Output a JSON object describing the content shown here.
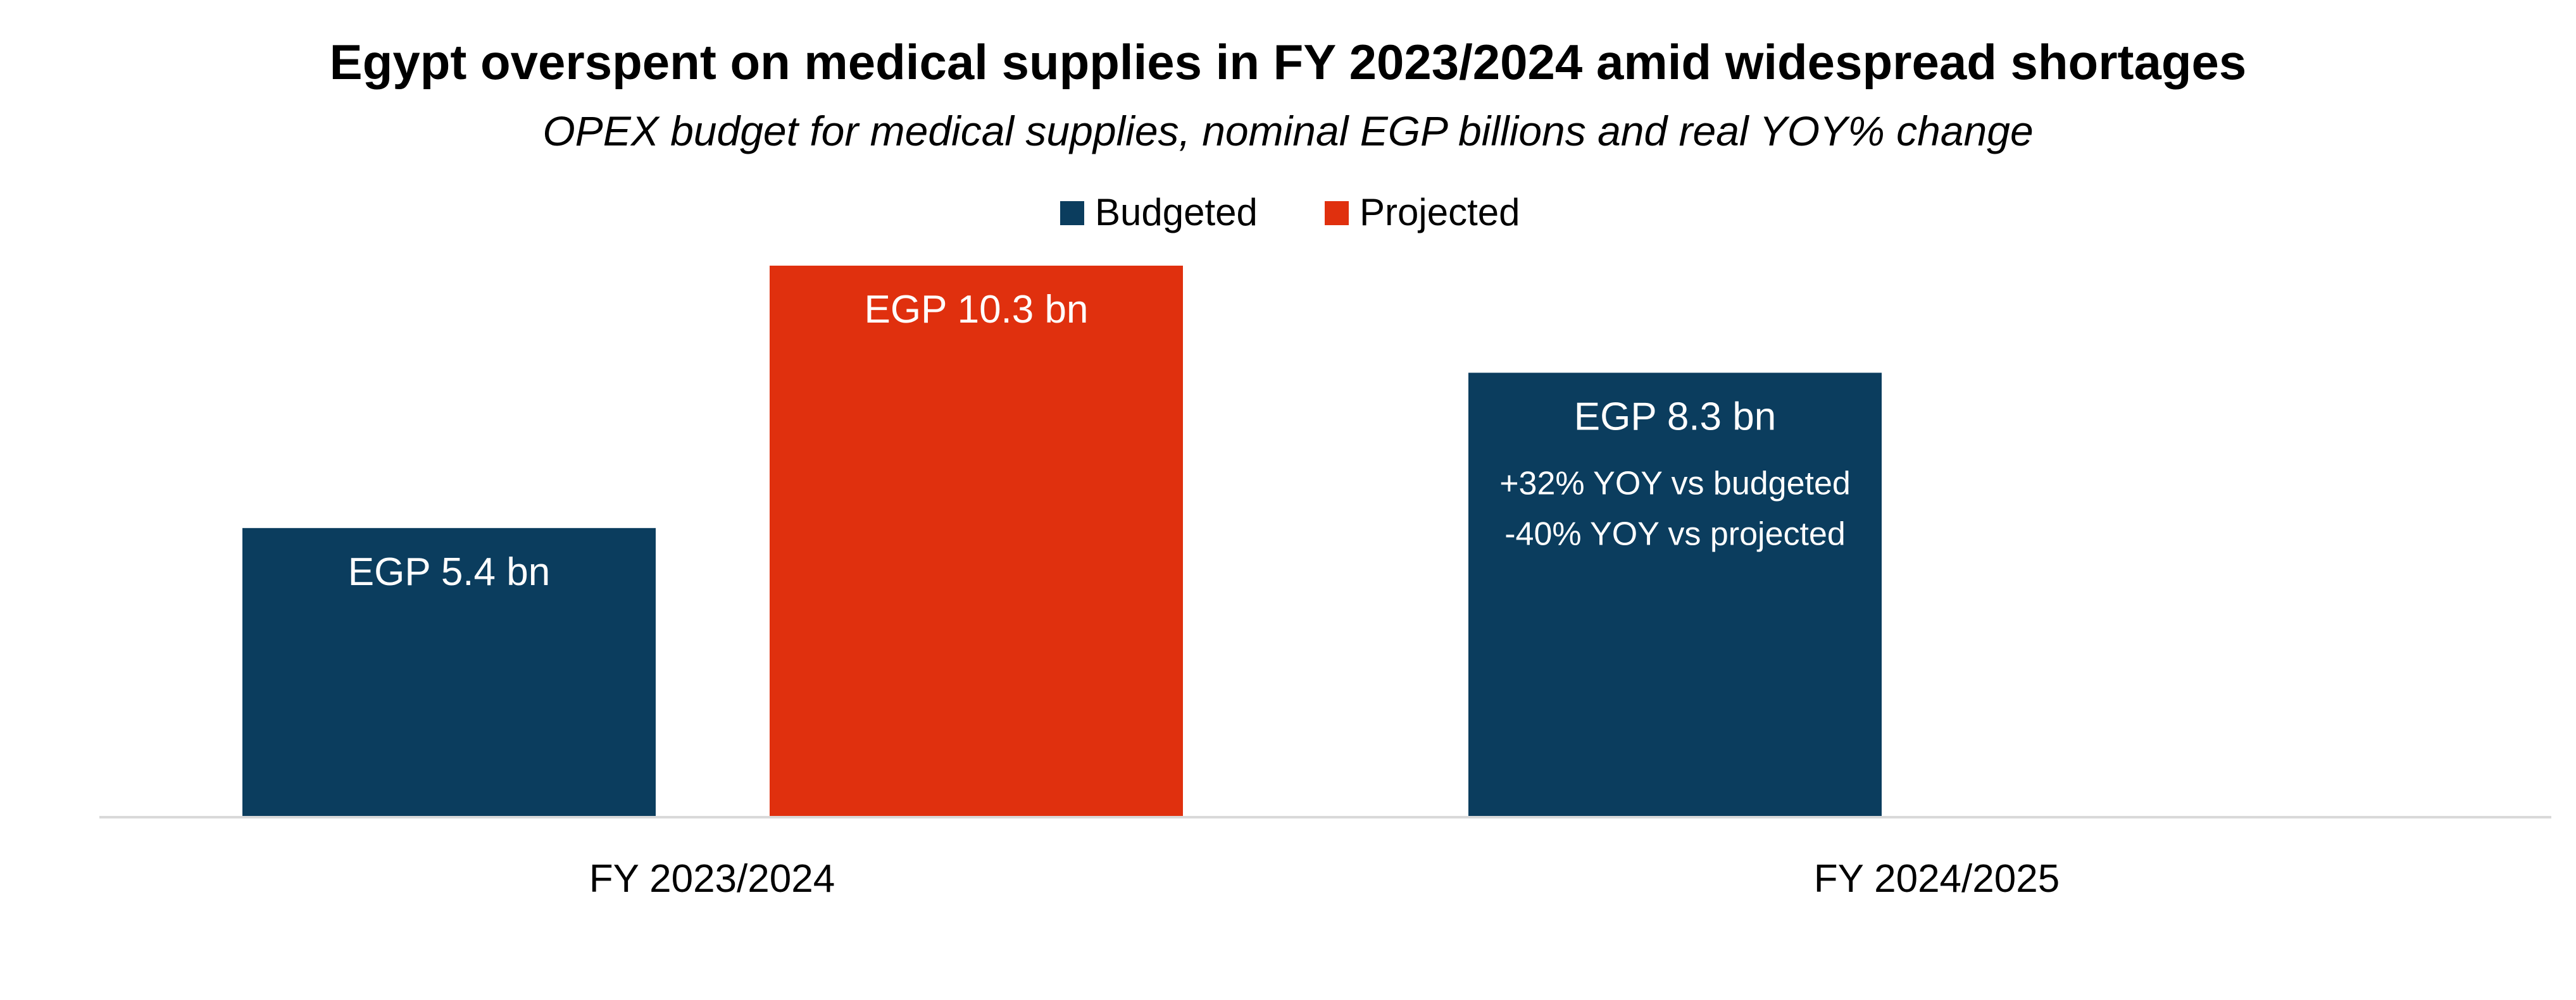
{
  "chart_data": {
    "type": "bar",
    "title": "Egypt overspent on medical supplies in FY 2023/2024 amid widespread shortages",
    "subtitle": "OPEX budget for medical supplies, nominal EGP billions and real YOY% change",
    "categories": [
      "FY 2023/2024",
      "FY 2024/2025"
    ],
    "legend": {
      "position": "top",
      "entries": [
        "Budgeted",
        "Projected"
      ]
    },
    "series": [
      {
        "name": "Budgeted",
        "color": "#0b3d5e",
        "values": [
          5.4,
          8.3
        ],
        "labels": [
          [
            "EGP 5.4 bn"
          ],
          [
            "EGP 8.3 bn",
            "+32% YOY vs budgeted",
            "-40% YOY vs projected"
          ]
        ]
      },
      {
        "name": "Projected",
        "color": "#e0300e",
        "values": [
          10.3,
          null
        ],
        "labels": [
          [
            "EGP 10.3 bn"
          ],
          null
        ]
      }
    ],
    "ylim": [
      0,
      10.3
    ],
    "grid": false,
    "axis_color": "#d9d9d9"
  }
}
